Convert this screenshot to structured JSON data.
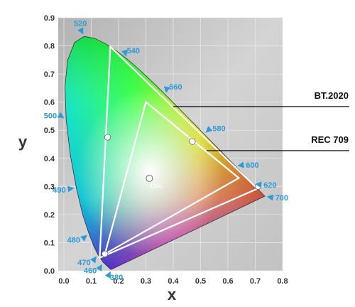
{
  "chart_data": {
    "type": "scatter",
    "xlabel": "x",
    "ylabel": "y",
    "xlim": [
      0,
      0.8
    ],
    "ylim": [
      0,
      0.9
    ],
    "x_ticks": [
      "0.0",
      "0.1",
      "0.2",
      "0.3",
      "0.4",
      "0.5",
      "0.6",
      "0.7",
      "0.8"
    ],
    "y_ticks": [
      "0.0",
      "0.1",
      "0.2",
      "0.3",
      "0.4",
      "0.5",
      "0.6",
      "0.7",
      "0.8",
      "0.9"
    ],
    "grid": true,
    "spectral_locus": [
      {
        "nm": "380",
        "x": 0.1741,
        "y": 0.005
      },
      {
        "nm": "460",
        "x": 0.144,
        "y": 0.0297
      },
      {
        "nm": "470",
        "x": 0.1241,
        "y": 0.0578
      },
      {
        "nm": "480",
        "x": 0.0913,
        "y": 0.1327
      },
      {
        "nm": "490",
        "x": 0.0454,
        "y": 0.295
      },
      {
        "nm": "500",
        "x": 0.0082,
        "y": 0.5384
      },
      {
        "nm": "520",
        "x": 0.0743,
        "y": 0.8338
      },
      {
        "nm": "540",
        "x": 0.2296,
        "y": 0.7543
      },
      {
        "nm": "560",
        "x": 0.3731,
        "y": 0.6245
      },
      {
        "nm": "580",
        "x": 0.5125,
        "y": 0.4866
      },
      {
        "nm": "600",
        "x": 0.627,
        "y": 0.3725
      },
      {
        "nm": "620",
        "x": 0.6915,
        "y": 0.3083
      },
      {
        "nm": "700",
        "x": 0.7347,
        "y": 0.2653
      }
    ],
    "locus_outline": [
      [
        0.1741,
        0.005
      ],
      [
        0.1738,
        0.0049
      ],
      [
        0.1733,
        0.0048
      ],
      [
        0.1726,
        0.0048
      ],
      [
        0.1714,
        0.0051
      ],
      [
        0.1689,
        0.0069
      ],
      [
        0.1644,
        0.0109
      ],
      [
        0.144,
        0.0297
      ],
      [
        0.1241,
        0.0578
      ],
      [
        0.1096,
        0.0868
      ],
      [
        0.0913,
        0.1327
      ],
      [
        0.0687,
        0.2007
      ],
      [
        0.0454,
        0.295
      ],
      [
        0.0235,
        0.4127
      ],
      [
        0.0082,
        0.5384
      ],
      [
        0.0039,
        0.6548
      ],
      [
        0.0139,
        0.7502
      ],
      [
        0.0389,
        0.812
      ],
      [
        0.0743,
        0.8338
      ],
      [
        0.1142,
        0.8262
      ],
      [
        0.1547,
        0.8059
      ],
      [
        0.1929,
        0.7816
      ],
      [
        0.2296,
        0.7543
      ],
      [
        0.2658,
        0.7243
      ],
      [
        0.3016,
        0.6923
      ],
      [
        0.3373,
        0.6589
      ],
      [
        0.3731,
        0.6245
      ],
      [
        0.4087,
        0.5896
      ],
      [
        0.4441,
        0.5547
      ],
      [
        0.4788,
        0.5202
      ],
      [
        0.5125,
        0.4866
      ],
      [
        0.5448,
        0.4544
      ],
      [
        0.5752,
        0.4242
      ],
      [
        0.6029,
        0.3965
      ],
      [
        0.627,
        0.3725
      ],
      [
        0.6482,
        0.3514
      ],
      [
        0.6658,
        0.334
      ],
      [
        0.6801,
        0.3197
      ],
      [
        0.6915,
        0.3083
      ],
      [
        0.7006,
        0.2993
      ],
      [
        0.7079,
        0.292
      ],
      [
        0.714,
        0.2859
      ],
      [
        0.719,
        0.2809
      ],
      [
        0.723,
        0.277
      ],
      [
        0.726,
        0.274
      ],
      [
        0.7347,
        0.2653
      ]
    ],
    "series": [
      {
        "name": "BT.2020",
        "points": [
          [
            0.708,
            0.292
          ],
          [
            0.17,
            0.797
          ],
          [
            0.131,
            0.046
          ]
        ]
      },
      {
        "name": "REC 709",
        "points": [
          [
            0.64,
            0.33
          ],
          [
            0.3,
            0.6
          ],
          [
            0.15,
            0.06
          ]
        ]
      }
    ],
    "white_point": {
      "label": "D65",
      "x": 0.3127,
      "y": 0.329
    },
    "extra_markers": [
      [
        0.16,
        0.475
      ],
      [
        0.47,
        0.46
      ],
      [
        0.71,
        0.3
      ],
      [
        0.15,
        0.06
      ]
    ],
    "bt2020_label": "BT.2020",
    "rec709_label": "REC 709",
    "colors": {
      "background": "#c6c6c6",
      "gridline": "#e6e6e6",
      "wavelength_text": "#2d9bd7",
      "gamut_line": "#ffffff",
      "leader_line": "#000000"
    }
  }
}
